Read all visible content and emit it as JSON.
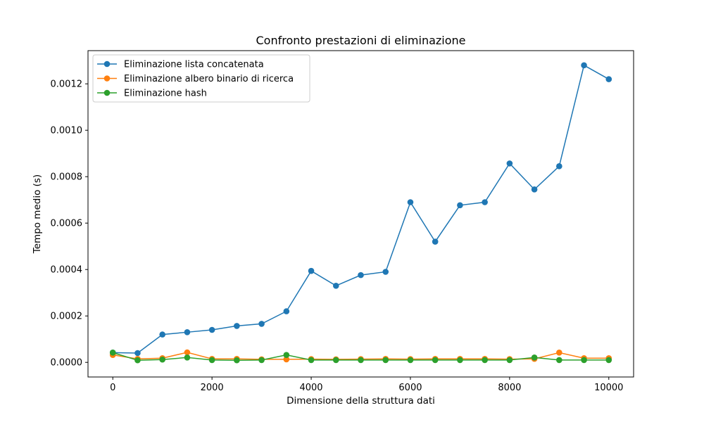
{
  "chart_data": {
    "type": "line",
    "title": "Confronto prestazioni di eliminazione",
    "xlabel": "Dimensione della struttura dati",
    "ylabel": "Tempo medio (s)",
    "xlim": [
      -500,
      10500
    ],
    "ylim": [
      -6.3e-05,
      0.001343
    ],
    "xticks": [
      0,
      2000,
      4000,
      6000,
      8000,
      10000
    ],
    "xtick_labels": [
      "0",
      "2000",
      "4000",
      "6000",
      "8000",
      "10000"
    ],
    "yticks": [
      0,
      0.0002,
      0.0004,
      0.0006,
      0.0008,
      0.001,
      0.0012
    ],
    "ytick_labels": [
      "0.0000",
      "0.0002",
      "0.0004",
      "0.0006",
      "0.0008",
      "0.0010",
      "0.0012"
    ],
    "grid": false,
    "legend_position": "top-left",
    "x": [
      0,
      500,
      1000,
      1500,
      2000,
      2500,
      3000,
      3500,
      4000,
      4500,
      5000,
      5500,
      6000,
      6500,
      7000,
      7500,
      8000,
      8500,
      9000,
      9500,
      10000
    ],
    "series": [
      {
        "name": "Eliminazione lista concatenata",
        "color": "#1f77b4",
        "values": [
          4.2e-05,
          4e-05,
          0.00012,
          0.00013,
          0.00014,
          0.000157,
          0.000166,
          0.00022,
          0.000394,
          0.00033,
          0.000376,
          0.00039,
          0.00069,
          0.00052,
          0.000677,
          0.00069,
          0.000857,
          0.000745,
          0.000845,
          0.00128,
          0.00122
        ]
      },
      {
        "name": "Eliminazione albero binario di ricerca",
        "color": "#ff7f0e",
        "values": [
          3.2e-05,
          1.5e-05,
          1.8e-05,
          4.3e-05,
          1.5e-05,
          1.5e-05,
          1.3e-05,
          1.3e-05,
          1.4e-05,
          1.3e-05,
          1.4e-05,
          1.5e-05,
          1.4e-05,
          1.5e-05,
          1.5e-05,
          1.5e-05,
          1.4e-05,
          1.5e-05,
          4.2e-05,
          1.8e-05,
          1.8e-05
        ]
      },
      {
        "name": "Eliminazione hash",
        "color": "#2ca02c",
        "values": [
          4.2e-05,
          9e-06,
          1.2e-05,
          2.1e-05,
          1e-05,
          9e-06,
          1e-05,
          3.2e-05,
          1e-05,
          1e-05,
          1e-05,
          1e-05,
          1e-05,
          1e-05,
          1e-05,
          1e-05,
          1e-05,
          2.1e-05,
          1e-05,
          1e-05,
          1e-05
        ]
      }
    ]
  }
}
